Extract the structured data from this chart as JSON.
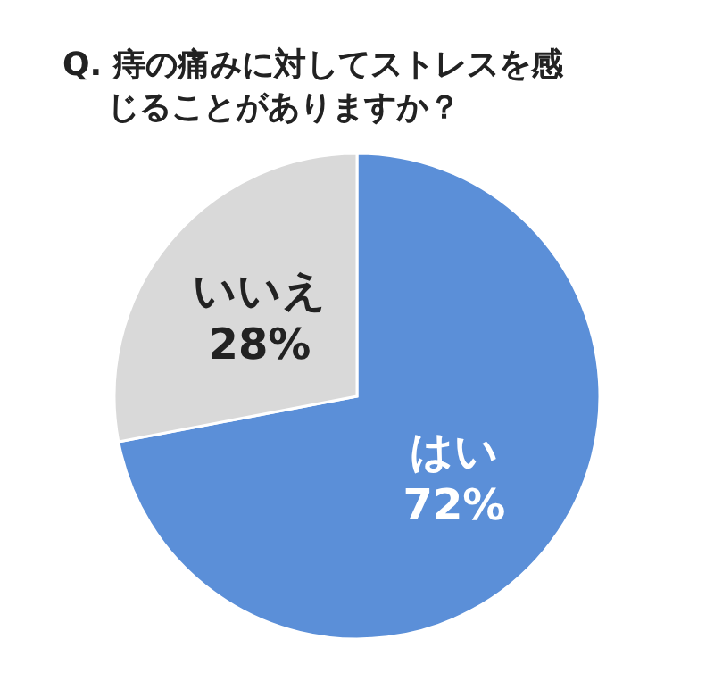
{
  "chart_data": {
    "type": "pie",
    "title": "Q. 痔の痛みに対してストレスを感じることがありますか？",
    "categories": [
      "はい",
      "いいえ"
    ],
    "values": [
      72,
      28
    ],
    "value_labels": [
      "72%",
      "28%"
    ],
    "colors": [
      "#5b8fd8",
      "#d9d9d9"
    ],
    "legend": false
  }
}
